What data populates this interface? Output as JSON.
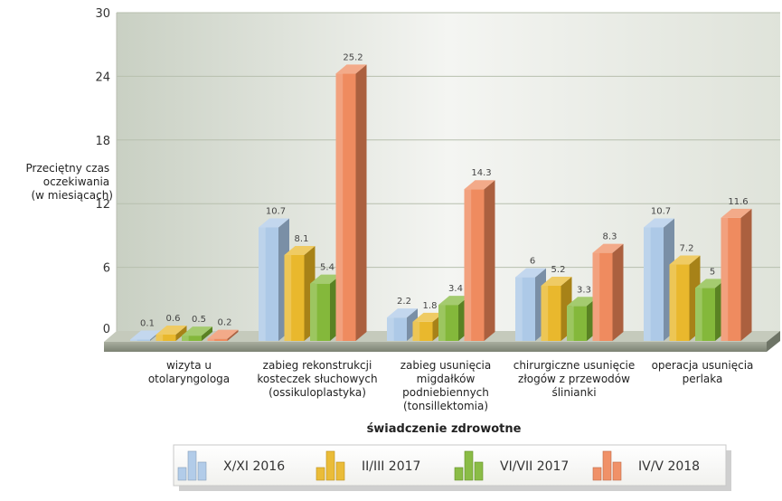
{
  "chart_data": {
    "type": "bar",
    "ylabel_lines": [
      "Przeciętny czas",
      "oczekiwania",
      "(w miesiącach)"
    ],
    "xlabel": "świadczenie zdrowotne",
    "ylim": [
      0,
      30
    ],
    "yticks": [
      "0",
      "6",
      "12",
      "18",
      "24",
      "30"
    ],
    "grid": true,
    "legend_position": "bottom",
    "categories": [
      [
        "wizyta u",
        "otolaryngologa"
      ],
      [
        "zabieg rekonstrukcji",
        "kosteczek słuchowych",
        "(ossikuloplastyka)"
      ],
      [
        "zabieg usunięcia",
        "migdałków",
        "podniebiennych",
        "(tonsillektomia)"
      ],
      [
        "chirurgiczne usunięcie",
        "złogów z przewodów",
        "ślinianki"
      ],
      [
        "operacja usunięcia",
        "perlaka"
      ]
    ],
    "series": [
      {
        "name": "X/XI 2016",
        "color": "#a9c6e6",
        "values": [
          0.1,
          10.7,
          2.2,
          6,
          10.7
        ],
        "labels": [
          "0.1",
          "10.7",
          "2.2",
          "6",
          "10.7"
        ]
      },
      {
        "name": "II/III 2017",
        "color": "#e8b422",
        "values": [
          0.6,
          8.1,
          1.8,
          5.2,
          7.2
        ],
        "labels": [
          "0.6",
          "8.1",
          "1.8",
          "5.2",
          "7.2"
        ]
      },
      {
        "name": "VI/VII 2017",
        "color": "#7db431",
        "values": [
          0.5,
          5.4,
          3.4,
          3.3,
          5
        ],
        "labels": [
          "0.5",
          "5.4",
          "3.4",
          "3.3",
          "5"
        ]
      },
      {
        "name": "IV/V 2018",
        "color": "#ee8557",
        "values": [
          0.2,
          25.2,
          14.3,
          8.3,
          11.6
        ],
        "labels": [
          "0.2",
          "25.2",
          "14.3",
          "8.3",
          "11.6"
        ]
      }
    ]
  }
}
